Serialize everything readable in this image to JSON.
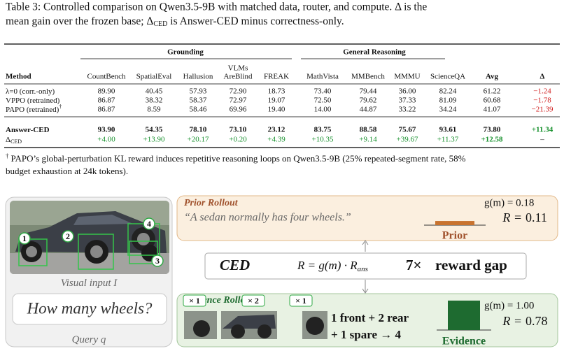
{
  "caption": {
    "line1": "Table 3: Controlled comparison on Qwen3.5-9B with matched data, router, and compute. Δ is the",
    "line2_pre": "mean gain over the frozen base; Δ",
    "line2_sub": "CED",
    "line2_post": " is Answer-CED minus correctness-only."
  },
  "table": {
    "groups": [
      "Grounding",
      "General Reasoning"
    ],
    "columns": [
      "Method",
      "CountBench",
      "SpatialEval",
      "Hallusion",
      [
        "VLMs",
        "AreBlind"
      ],
      "FREAK",
      "MathVista",
      "MMBench",
      "MMMU",
      "ScienceQA",
      "Avg",
      "Δ"
    ],
    "rows": [
      {
        "method": "λ=0 (corr.-only)",
        "cells": [
          "89.90",
          "40.45",
          "57.93",
          "72.90",
          "18.73",
          "73.40",
          "79.44",
          "36.00",
          "82.24",
          "61.22",
          "−1.24"
        ]
      },
      {
        "method": "VPPO (retrained)",
        "cells": [
          "86.87",
          "38.32",
          "58.37",
          "72.97",
          "19.07",
          "72.50",
          "79.62",
          "37.33",
          "81.09",
          "60.68",
          "−1.78"
        ]
      },
      {
        "method": "PAPO (retrained)",
        "mark": "†",
        "cells": [
          "86.87",
          "8.59",
          "58.46",
          "69.96",
          "19.40",
          "14.00",
          "44.87",
          "33.22",
          "34.24",
          "41.07",
          "−21.39"
        ]
      },
      {
        "method": "Answer-CED",
        "cells": [
          "93.90",
          "54.35",
          "78.10",
          "73.10",
          "23.12",
          "83.75",
          "88.58",
          "75.67",
          "93.61",
          "73.80",
          "+11.34"
        ]
      },
      {
        "method": "Δ",
        "sub": "CED",
        "cells": [
          "+4.00",
          "+13.90",
          "+20.17",
          "+0.20",
          "+4.39",
          "+10.35",
          "+9.14",
          "+39.67",
          "+11.37",
          "+12.58",
          "–"
        ]
      }
    ]
  },
  "footnote": {
    "mark": "†",
    "line1": "PAPO’s global-perturbation KL reward induces repetitive reasoning loops on Qwen3.5-9B (25% repeated-segment rate, 58%",
    "line2": "budget exhaustion at 24k tokens)."
  },
  "figure": {
    "markers": [
      "1",
      "2",
      "3",
      "4"
    ],
    "visual_label": "Visual input ",
    "visual_var": "I",
    "query": "How many wheels?",
    "query_label": "Query ",
    "query_var": "q",
    "prior": {
      "title": "Prior Rollout",
      "quote": "“A sedan normally has four wheels.”",
      "g": "g(m) = 0.18",
      "r_label": "R =",
      "r": 0.11,
      "bar_label": "Prior"
    },
    "ced": {
      "name": "CED",
      "formula": "R = g(m) · R",
      "formula_sub": "ans",
      "gap": "7×",
      "gap_text": "reward gap"
    },
    "evidence": {
      "title": "Evidence Rollout",
      "counts": [
        "× 1",
        "× 2",
        "× 1"
      ],
      "line1": "1 front + 2 rear",
      "line2": "+ 1 spare → 4",
      "g": "g(m) = 1.00",
      "r_label": "R =",
      "r": 0.78,
      "bar_label": "Evidence"
    }
  }
}
